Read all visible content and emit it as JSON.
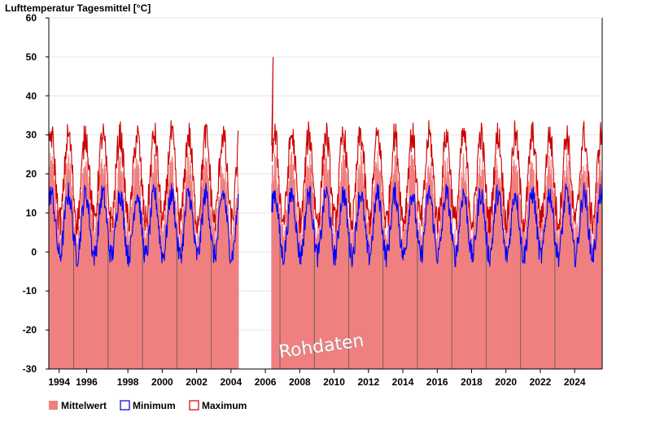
{
  "chart_data": {
    "type": "line",
    "title": "Lufttemperatur Tagesmittel [°C]",
    "ylabel": "Lufttemperatur Tagesmittel [°C]",
    "xlabel": "",
    "ylim": [
      -30,
      60
    ],
    "xlim": [
      1993.4,
      2025.6
    ],
    "y_ticks": [
      60,
      50,
      40,
      30,
      20,
      10,
      0,
      -10,
      -20,
      -30
    ],
    "x_ticks": [
      {
        "value": 1994,
        "label": "1994"
      },
      {
        "value": 1995.6,
        "label": "1996"
      },
      {
        "value": 1998,
        "label": "1998"
      },
      {
        "value": 2000,
        "label": "2000"
      },
      {
        "value": 2002,
        "label": "2002"
      },
      {
        "value": 2004,
        "label": "2004"
      },
      {
        "value": 2006,
        "label": "2006"
      },
      {
        "value": 2008,
        "label": "2008"
      },
      {
        "value": 2010,
        "label": "2010"
      },
      {
        "value": 2012,
        "label": "2012"
      },
      {
        "value": 2014,
        "label": "2014"
      },
      {
        "value": 2016,
        "label": "2016"
      },
      {
        "value": 2018,
        "label": "2018"
      },
      {
        "value": 2020,
        "label": "2020"
      },
      {
        "value": 2022,
        "label": "2022"
      },
      {
        "value": 2024,
        "label": "2024"
      }
    ],
    "year_dividers": [
      1994.85,
      1996.85,
      1998.85,
      2000.85,
      2002.85,
      2006.85,
      2008.85,
      2010.85,
      2012.85,
      2014.85,
      2016.85,
      2018.85,
      2020.85,
      2022.85
    ],
    "data_gap": [
      2004.45,
      2006.35
    ],
    "spike": {
      "x": 2006.45,
      "y": 50
    },
    "series": [
      {
        "name": "Mittelwert",
        "style": "filled-bar",
        "color": "#f08080",
        "seasonal": {
          "mean": 13,
          "amplitude": 9,
          "noise": 4
        }
      },
      {
        "name": "Minimum",
        "style": "line",
        "color": "#0000ff",
        "seasonal": {
          "mean": 7,
          "amplitude": 8,
          "noise": 3
        }
      },
      {
        "name": "Maximum",
        "style": "line",
        "color": "#cc0000",
        "seasonal": {
          "mean": 19,
          "amplitude": 11,
          "noise": 4
        }
      }
    ],
    "legend": {
      "position": "bottom-left",
      "items": [
        {
          "label": "Mittelwert",
          "color": "#f08080",
          "style": "filled"
        },
        {
          "label": "Minimum",
          "color": "#0000cc",
          "style": "outline"
        },
        {
          "label": "Maximum",
          "color": "#cc0000",
          "style": "outline"
        }
      ]
    },
    "watermark": "Rohdaten",
    "colors": {
      "mean_fill": "#f08080",
      "min_line": "#0000ff",
      "max_line": "#cc0000",
      "grid": "#e6e6e6",
      "divider": "#555555",
      "axis": "#000000"
    }
  }
}
